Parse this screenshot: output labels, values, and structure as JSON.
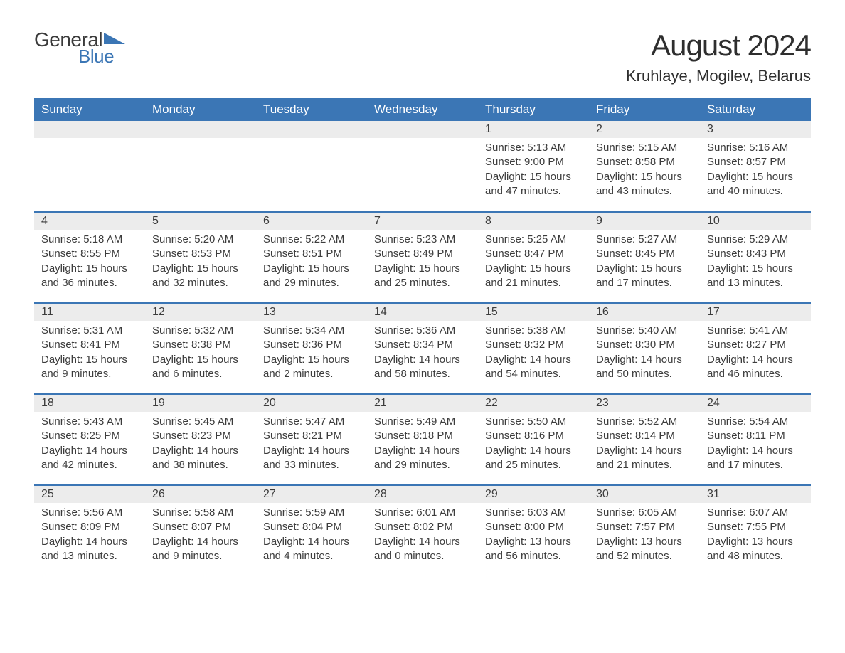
{
  "logo": {
    "general": "General",
    "blue": "Blue",
    "shape_color": "#3b76b5"
  },
  "title": "August 2024",
  "location": "Kruhlaye, Mogilev, Belarus",
  "colors": {
    "header_bg": "#3b76b5",
    "header_text": "#ffffff",
    "daynum_bg": "#ececec",
    "text": "#3c3c3c",
    "row_border": "#3b76b5",
    "page_bg": "#ffffff"
  },
  "typography": {
    "title_fontsize": 42,
    "location_fontsize": 22,
    "dayheader_fontsize": 17,
    "daynum_fontsize": 16,
    "body_fontsize": 15
  },
  "calendar": {
    "columns": [
      "Sunday",
      "Monday",
      "Tuesday",
      "Wednesday",
      "Thursday",
      "Friday",
      "Saturday"
    ],
    "weeks": [
      [
        null,
        null,
        null,
        null,
        {
          "n": "1",
          "sunrise": "5:13 AM",
          "sunset": "9:00 PM",
          "dl_h": "15",
          "dl_m": "47"
        },
        {
          "n": "2",
          "sunrise": "5:15 AM",
          "sunset": "8:58 PM",
          "dl_h": "15",
          "dl_m": "43"
        },
        {
          "n": "3",
          "sunrise": "5:16 AM",
          "sunset": "8:57 PM",
          "dl_h": "15",
          "dl_m": "40"
        }
      ],
      [
        {
          "n": "4",
          "sunrise": "5:18 AM",
          "sunset": "8:55 PM",
          "dl_h": "15",
          "dl_m": "36"
        },
        {
          "n": "5",
          "sunrise": "5:20 AM",
          "sunset": "8:53 PM",
          "dl_h": "15",
          "dl_m": "32"
        },
        {
          "n": "6",
          "sunrise": "5:22 AM",
          "sunset": "8:51 PM",
          "dl_h": "15",
          "dl_m": "29"
        },
        {
          "n": "7",
          "sunrise": "5:23 AM",
          "sunset": "8:49 PM",
          "dl_h": "15",
          "dl_m": "25"
        },
        {
          "n": "8",
          "sunrise": "5:25 AM",
          "sunset": "8:47 PM",
          "dl_h": "15",
          "dl_m": "21"
        },
        {
          "n": "9",
          "sunrise": "5:27 AM",
          "sunset": "8:45 PM",
          "dl_h": "15",
          "dl_m": "17"
        },
        {
          "n": "10",
          "sunrise": "5:29 AM",
          "sunset": "8:43 PM",
          "dl_h": "15",
          "dl_m": "13"
        }
      ],
      [
        {
          "n": "11",
          "sunrise": "5:31 AM",
          "sunset": "8:41 PM",
          "dl_h": "15",
          "dl_m": "9"
        },
        {
          "n": "12",
          "sunrise": "5:32 AM",
          "sunset": "8:38 PM",
          "dl_h": "15",
          "dl_m": "6"
        },
        {
          "n": "13",
          "sunrise": "5:34 AM",
          "sunset": "8:36 PM",
          "dl_h": "15",
          "dl_m": "2"
        },
        {
          "n": "14",
          "sunrise": "5:36 AM",
          "sunset": "8:34 PM",
          "dl_h": "14",
          "dl_m": "58"
        },
        {
          "n": "15",
          "sunrise": "5:38 AM",
          "sunset": "8:32 PM",
          "dl_h": "14",
          "dl_m": "54"
        },
        {
          "n": "16",
          "sunrise": "5:40 AM",
          "sunset": "8:30 PM",
          "dl_h": "14",
          "dl_m": "50"
        },
        {
          "n": "17",
          "sunrise": "5:41 AM",
          "sunset": "8:27 PM",
          "dl_h": "14",
          "dl_m": "46"
        }
      ],
      [
        {
          "n": "18",
          "sunrise": "5:43 AM",
          "sunset": "8:25 PM",
          "dl_h": "14",
          "dl_m": "42"
        },
        {
          "n": "19",
          "sunrise": "5:45 AM",
          "sunset": "8:23 PM",
          "dl_h": "14",
          "dl_m": "38"
        },
        {
          "n": "20",
          "sunrise": "5:47 AM",
          "sunset": "8:21 PM",
          "dl_h": "14",
          "dl_m": "33"
        },
        {
          "n": "21",
          "sunrise": "5:49 AM",
          "sunset": "8:18 PM",
          "dl_h": "14",
          "dl_m": "29"
        },
        {
          "n": "22",
          "sunrise": "5:50 AM",
          "sunset": "8:16 PM",
          "dl_h": "14",
          "dl_m": "25"
        },
        {
          "n": "23",
          "sunrise": "5:52 AM",
          "sunset": "8:14 PM",
          "dl_h": "14",
          "dl_m": "21"
        },
        {
          "n": "24",
          "sunrise": "5:54 AM",
          "sunset": "8:11 PM",
          "dl_h": "14",
          "dl_m": "17"
        }
      ],
      [
        {
          "n": "25",
          "sunrise": "5:56 AM",
          "sunset": "8:09 PM",
          "dl_h": "14",
          "dl_m": "13"
        },
        {
          "n": "26",
          "sunrise": "5:58 AM",
          "sunset": "8:07 PM",
          "dl_h": "14",
          "dl_m": "9"
        },
        {
          "n": "27",
          "sunrise": "5:59 AM",
          "sunset": "8:04 PM",
          "dl_h": "14",
          "dl_m": "4"
        },
        {
          "n": "28",
          "sunrise": "6:01 AM",
          "sunset": "8:02 PM",
          "dl_h": "14",
          "dl_m": "0"
        },
        {
          "n": "29",
          "sunrise": "6:03 AM",
          "sunset": "8:00 PM",
          "dl_h": "13",
          "dl_m": "56"
        },
        {
          "n": "30",
          "sunrise": "6:05 AM",
          "sunset": "7:57 PM",
          "dl_h": "13",
          "dl_m": "52"
        },
        {
          "n": "31",
          "sunrise": "6:07 AM",
          "sunset": "7:55 PM",
          "dl_h": "13",
          "dl_m": "48"
        }
      ]
    ]
  }
}
